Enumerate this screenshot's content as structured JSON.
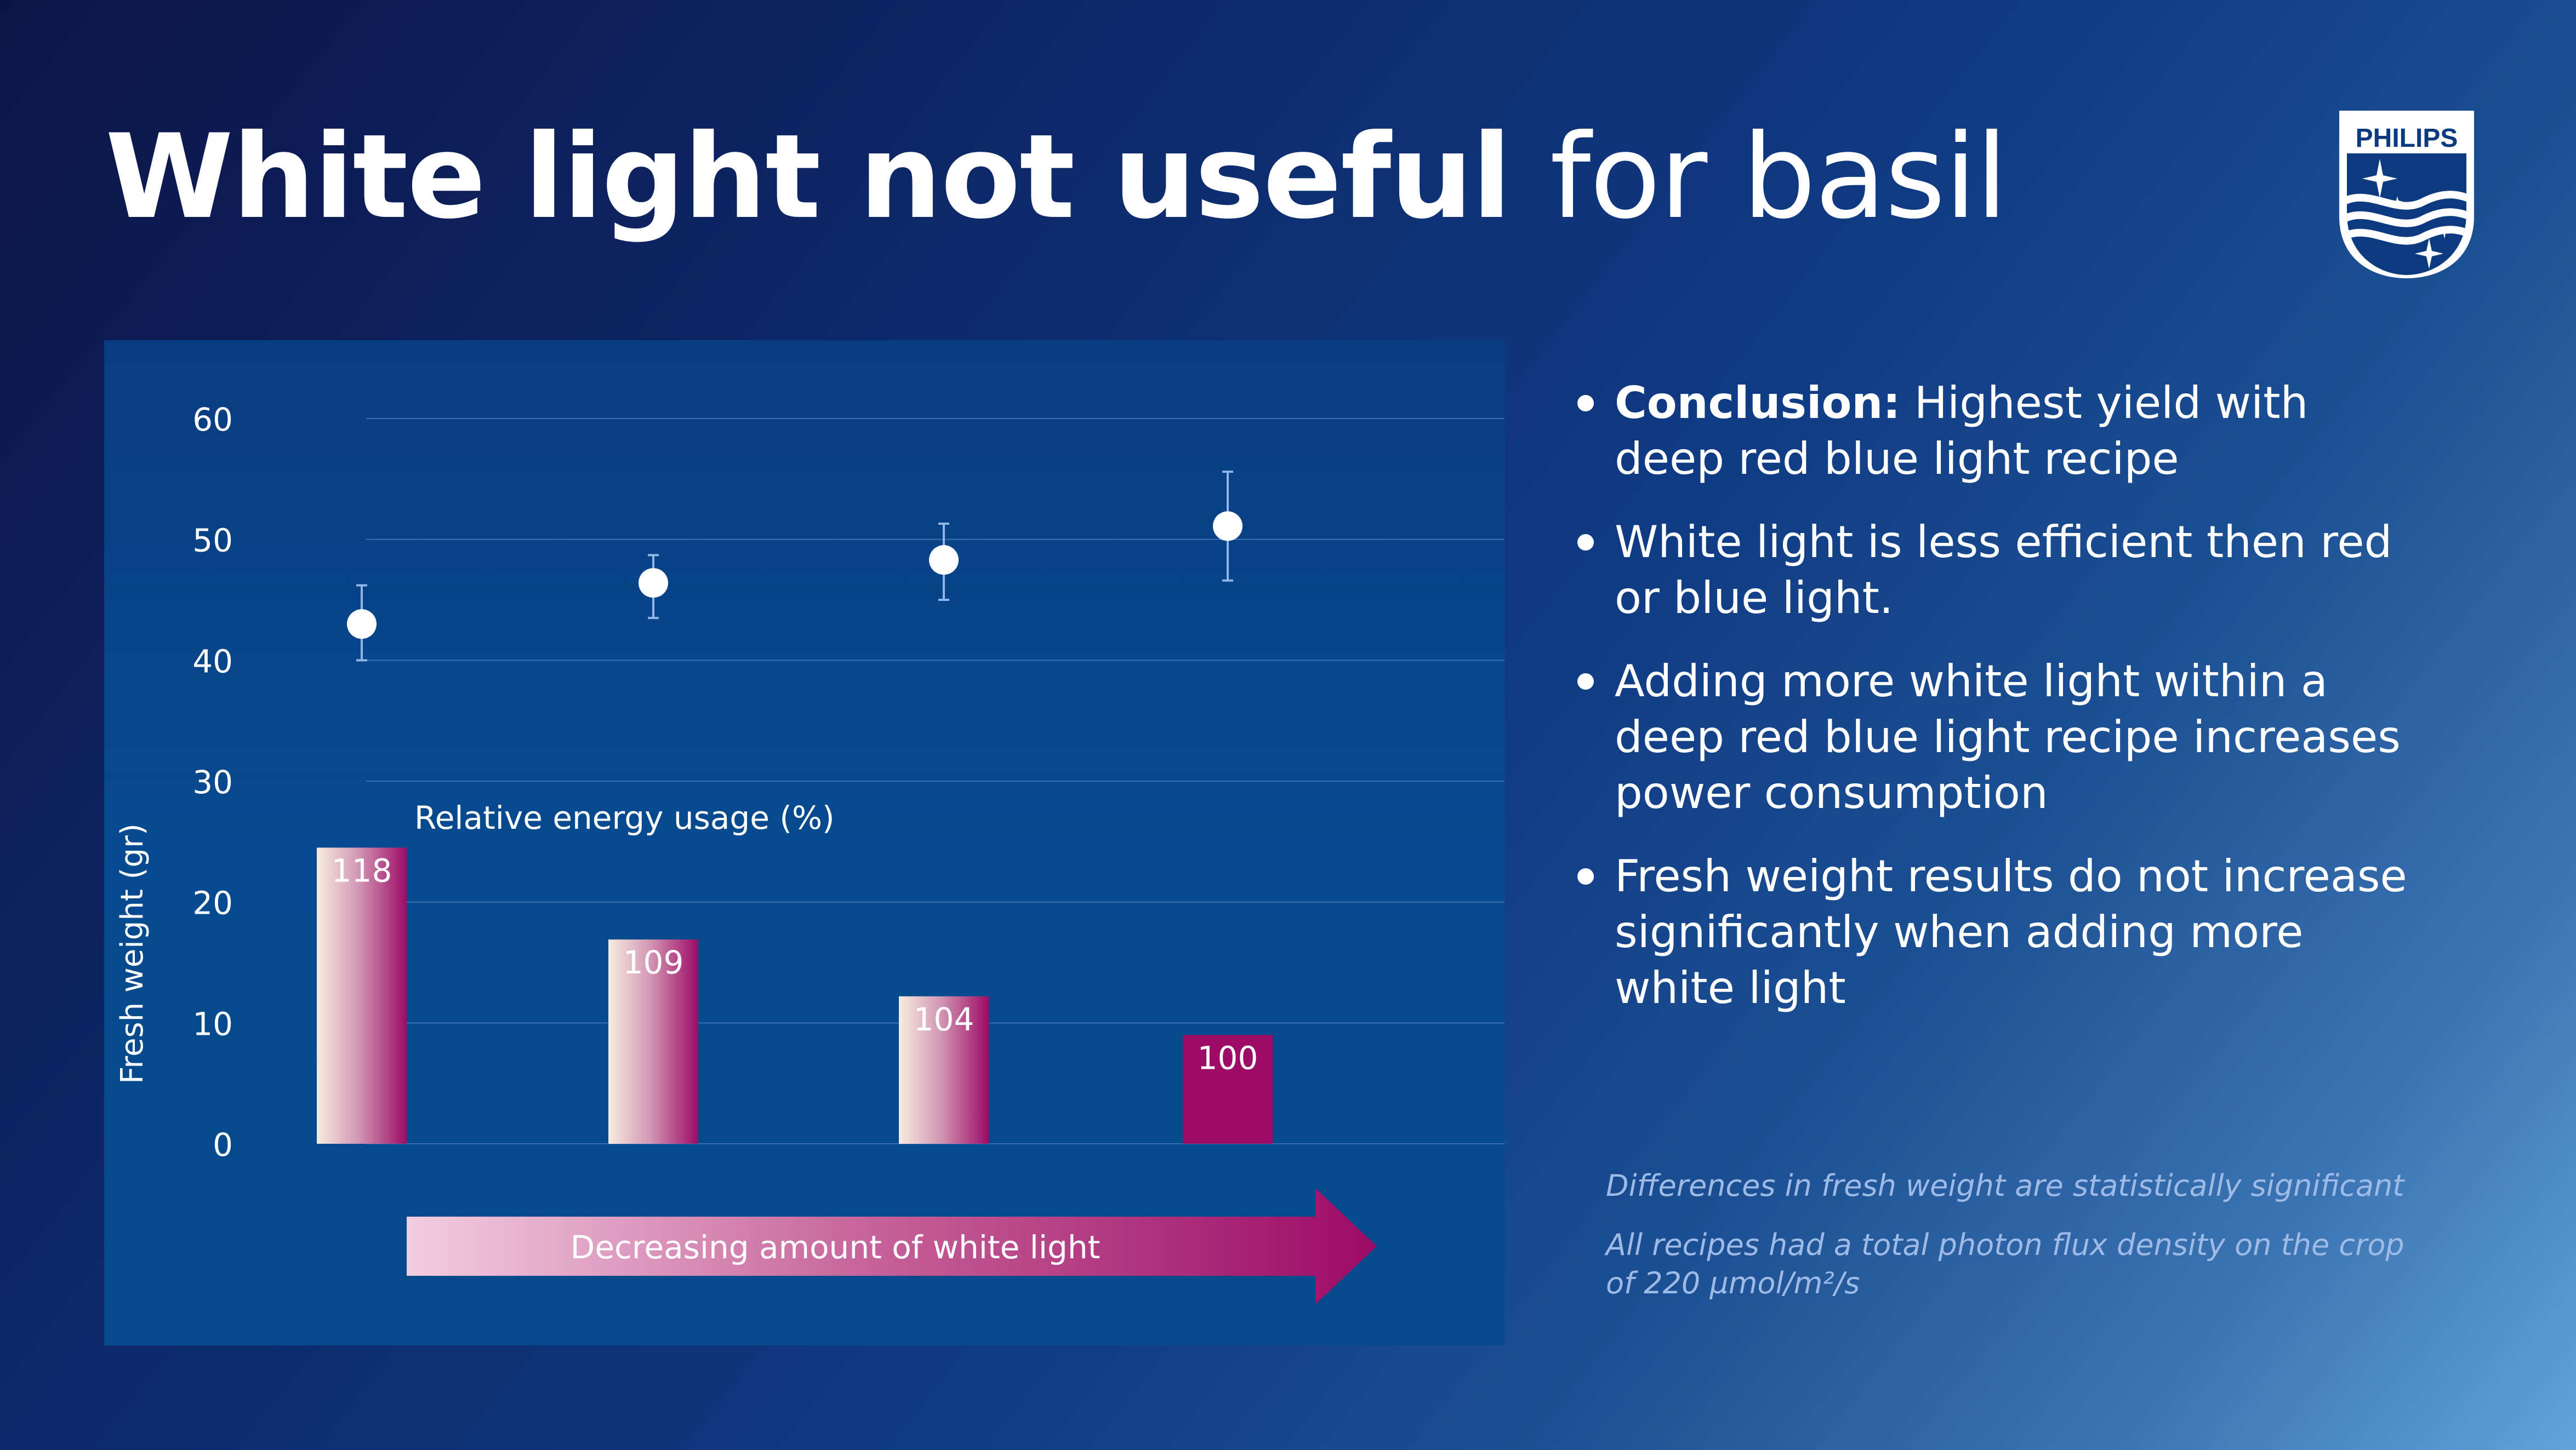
{
  "title": {
    "bold": "White light not useful",
    "light": "for basil"
  },
  "logo": {
    "text": "PHILIPS",
    "icon": "philips-shield-logo"
  },
  "chart_data": {
    "type": "scatter",
    "title": "",
    "ylabel": "Fresh weight (gr)",
    "xlabel": "",
    "ylim": [
      0,
      60
    ],
    "yticks": [
      0,
      10,
      20,
      30,
      40,
      50,
      60
    ],
    "grid": true,
    "series": [
      {
        "kind": "scatter-errorbar",
        "points": [
          {
            "y": 43.0,
            "low": 40.0,
            "high": 46.2
          },
          {
            "y": 46.4,
            "low": 43.5,
            "high": 48.7
          },
          {
            "y": 48.3,
            "low": 45.0,
            "high": 51.3
          },
          {
            "y": 51.1,
            "low": 46.6,
            "high": 55.6
          }
        ]
      },
      {
        "kind": "bar",
        "name": "Relative energy usage (%)",
        "values": [
          118,
          109,
          104,
          100
        ],
        "heights_in_y_units": [
          24.5,
          16.9,
          12.2,
          9.0
        ],
        "colors": {
          "light": "#f5e6dc",
          "dark": "#9c0b66"
        }
      }
    ],
    "arrow": {
      "label": "Decreasing amount of white light",
      "colors": {
        "start": "#f0c8dc",
        "end": "#9c0b66"
      }
    }
  },
  "bullets": [
    {
      "lead": "Conclusion:",
      "text": " Highest yield with deep red blue light recipe"
    },
    {
      "lead": "",
      "text": "White light is less efficient then red or blue light."
    },
    {
      "lead": "",
      "text": "Adding more white light within a deep red blue light recipe increases power consumption"
    },
    {
      "lead": "",
      "text": "Fresh weight results do not increase significantly when adding more white light"
    }
  ],
  "notes": [
    "Differences in fresh weight are statistically significant",
    "All recipes had a total photon flux density on the crop of  220 µmol/m²/s"
  ],
  "colors": {
    "accent": "#9c0b66",
    "note": "#9dbbe6",
    "background": "#0f3a84"
  }
}
